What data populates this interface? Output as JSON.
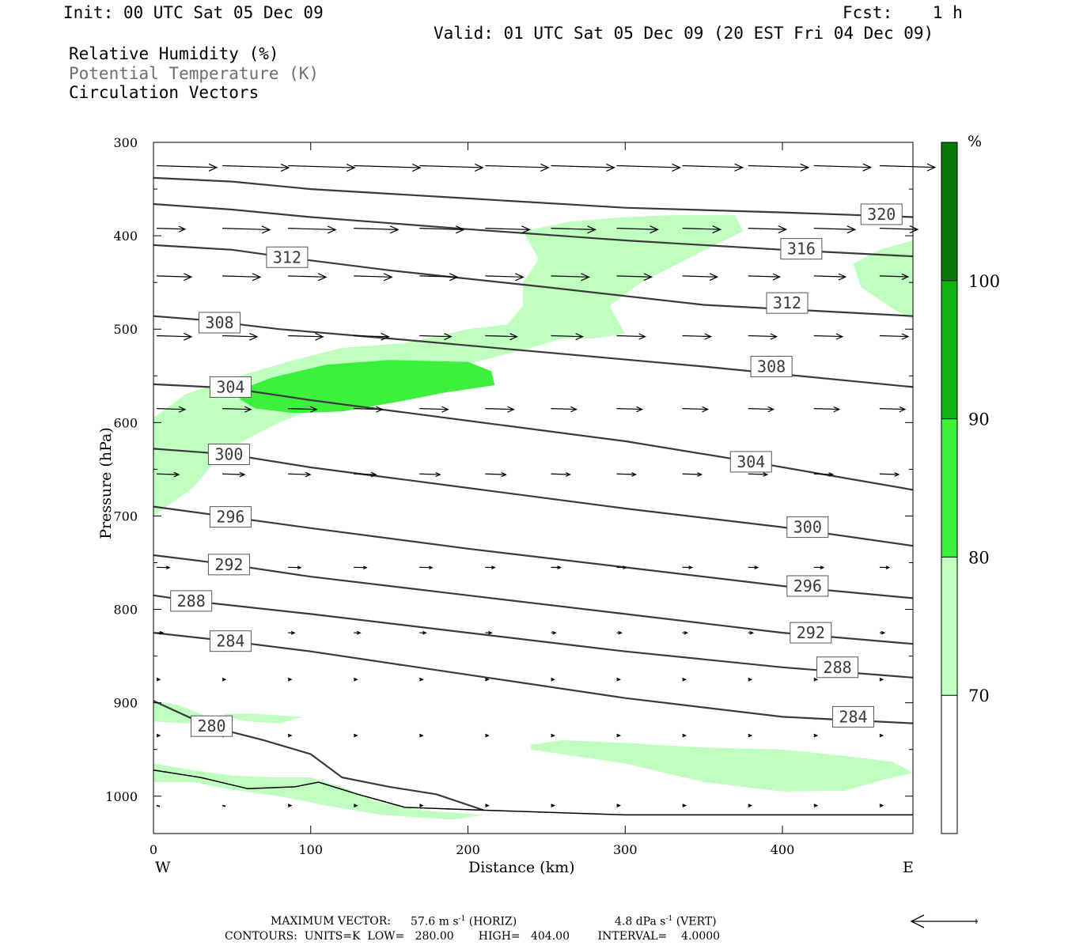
{
  "header": {
    "init": "Init: 00 UTC Sat 05 Dec 09",
    "fcst": "Fcst:    1 h",
    "valid": "Valid: 01 UTC Sat 05 Dec 09 (20 EST Fri 04 Dec 09)",
    "field1": "Relative Humidity (%)",
    "field2": "Potential Temperature (K)",
    "field3": "Circulation Vectors"
  },
  "chart_data": {
    "type": "cross-section",
    "xlabel": "Distance (km)",
    "ylabel": "Pressure (hPa)",
    "x_ticks": [
      0,
      100,
      200,
      300,
      400
    ],
    "y_ticks": [
      300,
      400,
      500,
      600,
      700,
      800,
      900,
      1000
    ],
    "xlim": [
      0,
      483
    ],
    "ylim": [
      300,
      1040
    ],
    "y_inverted": true,
    "left_end_label": "W",
    "right_end_label": "E",
    "colorbar": {
      "unit": "%",
      "levels": [
        70,
        80,
        90,
        100
      ],
      "colors": [
        "#ffffff",
        "#bfffbf",
        "#3cf03c",
        "#14b414",
        "#087808"
      ]
    },
    "rh_regions": [
      {
        "level": 70,
        "points": [
          [
            0,
            595
          ],
          [
            20,
            570
          ],
          [
            45,
            555
          ],
          [
            85,
            535
          ],
          [
            120,
            520
          ],
          [
            160,
            515
          ],
          [
            200,
            500
          ],
          [
            225,
            495
          ],
          [
            235,
            475
          ],
          [
            235,
            450
          ],
          [
            245,
            425
          ],
          [
            235,
            395
          ],
          [
            265,
            385
          ],
          [
            300,
            380
          ],
          [
            330,
            378
          ],
          [
            370,
            378
          ],
          [
            375,
            395
          ],
          [
            345,
            420
          ],
          [
            310,
            450
          ],
          [
            290,
            475
          ],
          [
            300,
            505
          ],
          [
            280,
            510
          ],
          [
            260,
            510
          ],
          [
            240,
            520
          ],
          [
            205,
            535
          ],
          [
            165,
            555
          ],
          [
            120,
            575
          ],
          [
            80,
            600
          ],
          [
            45,
            630
          ],
          [
            25,
            670
          ],
          [
            0,
            700
          ]
        ]
      },
      {
        "level": 80,
        "points": [
          [
            55,
            565
          ],
          [
            75,
            552
          ],
          [
            110,
            538
          ],
          [
            150,
            533
          ],
          [
            200,
            535
          ],
          [
            215,
            545
          ],
          [
            217,
            560
          ],
          [
            185,
            568
          ],
          [
            155,
            578
          ],
          [
            120,
            588
          ],
          [
            90,
            590
          ],
          [
            65,
            585
          ],
          [
            55,
            575
          ]
        ]
      },
      {
        "level": 70,
        "points": [
          [
            445,
            430
          ],
          [
            462,
            415
          ],
          [
            483,
            405
          ],
          [
            483,
            490
          ],
          [
            470,
            478
          ],
          [
            450,
            455
          ]
        ]
      },
      {
        "level": 70,
        "points": [
          [
            240,
            945
          ],
          [
            260,
            940
          ],
          [
            300,
            943
          ],
          [
            350,
            948
          ],
          [
            400,
            950
          ],
          [
            440,
            957
          ],
          [
            470,
            963
          ],
          [
            483,
            975
          ],
          [
            465,
            982
          ],
          [
            440,
            994
          ],
          [
            400,
            995
          ],
          [
            350,
            985
          ],
          [
            300,
            965
          ],
          [
            260,
            955
          ],
          [
            240,
            950
          ]
        ]
      },
      {
        "level": 70,
        "points": [
          [
            0,
            898
          ],
          [
            15,
            902
          ],
          [
            30,
            912
          ],
          [
            40,
            920
          ],
          [
            20,
            922
          ],
          [
            0,
            920
          ]
        ]
      },
      {
        "level": 70,
        "points": [
          [
            45,
            912
          ],
          [
            65,
            912
          ],
          [
            95,
            915
          ],
          [
            80,
            922
          ],
          [
            60,
            920
          ],
          [
            45,
            915
          ]
        ]
      },
      {
        "level": 70,
        "points": [
          [
            0,
            965
          ],
          [
            25,
            972
          ],
          [
            50,
            978
          ],
          [
            80,
            980
          ],
          [
            100,
            980
          ],
          [
            120,
            990
          ],
          [
            140,
            1005
          ],
          [
            170,
            1015
          ],
          [
            210,
            1020
          ],
          [
            190,
            1025
          ],
          [
            145,
            1020
          ],
          [
            110,
            1010
          ],
          [
            80,
            1000
          ],
          [
            50,
            993
          ],
          [
            25,
            985
          ],
          [
            0,
            985
          ]
        ]
      }
    ],
    "isentropes": [
      {
        "theta": 320,
        "points": [
          [
            0,
            338
          ],
          [
            50,
            342
          ],
          [
            100,
            350
          ],
          [
            200,
            360
          ],
          [
            300,
            370
          ],
          [
            400,
            375
          ],
          [
            483,
            380
          ]
        ],
        "label_at": [
          463,
          377
        ]
      },
      {
        "theta": 316,
        "points": [
          [
            0,
            366
          ],
          [
            50,
            372
          ],
          [
            100,
            380
          ],
          [
            200,
            393
          ],
          [
            300,
            405
          ],
          [
            400,
            415
          ],
          [
            483,
            422
          ]
        ],
        "label_at": [
          412,
          414
        ]
      },
      {
        "theta": 312,
        "points": [
          [
            0,
            410
          ],
          [
            50,
            415
          ],
          [
            84,
            423
          ],
          [
            150,
            437
          ],
          [
            250,
            455
          ],
          [
            350,
            474
          ],
          [
            483,
            486
          ]
        ],
        "label_at": [
          85,
          423
        ]
      },
      {
        "theta": 308,
        "points": [
          [
            0,
            486
          ],
          [
            30,
            490
          ],
          [
            80,
            500
          ],
          [
            150,
            510
          ],
          [
            250,
            525
          ],
          [
            350,
            540
          ],
          [
            483,
            562
          ]
        ],
        "label_at": [
          42,
          493
        ]
      },
      {
        "theta": 304,
        "points": [
          [
            0,
            559
          ],
          [
            48,
            563
          ],
          [
            100,
            576
          ],
          [
            200,
            598
          ],
          [
            300,
            620
          ],
          [
            380,
            642
          ],
          [
            483,
            672
          ]
        ],
        "label_at": [
          49,
          562
        ]
      },
      {
        "theta": 300,
        "points": [
          [
            0,
            628
          ],
          [
            48,
            634
          ],
          [
            100,
            648
          ],
          [
            200,
            670
          ],
          [
            300,
            692
          ],
          [
            400,
            712
          ],
          [
            483,
            732
          ]
        ],
        "label_at": [
          48,
          634
        ]
      },
      {
        "theta": 296,
        "points": [
          [
            0,
            690
          ],
          [
            48,
            701
          ],
          [
            100,
            713
          ],
          [
            200,
            735
          ],
          [
            300,
            755
          ],
          [
            400,
            775
          ],
          [
            483,
            788
          ]
        ],
        "label_at": [
          49,
          701
        ]
      },
      {
        "theta": 292,
        "points": [
          [
            0,
            742
          ],
          [
            48,
            752
          ],
          [
            100,
            765
          ],
          [
            200,
            785
          ],
          [
            300,
            805
          ],
          [
            400,
            825
          ],
          [
            483,
            837
          ]
        ],
        "label_at": [
          48,
          752
        ]
      },
      {
        "theta": 288,
        "points": [
          [
            0,
            785
          ],
          [
            24,
            791
          ],
          [
            100,
            805
          ],
          [
            200,
            825
          ],
          [
            300,
            845
          ],
          [
            400,
            862
          ],
          [
            483,
            873
          ]
        ],
        "label_at": [
          24,
          791
        ]
      },
      {
        "theta": 284,
        "points": [
          [
            0,
            825
          ],
          [
            48,
            834
          ],
          [
            100,
            845
          ],
          [
            200,
            870
          ],
          [
            300,
            895
          ],
          [
            400,
            915
          ],
          [
            483,
            922
          ]
        ],
        "label_at": [
          49,
          834
        ]
      },
      {
        "theta": 280,
        "points": [
          [
            0,
            898
          ],
          [
            35,
            925
          ],
          [
            70,
            940
          ],
          [
            100,
            955
          ],
          [
            120,
            980
          ],
          [
            150,
            990
          ],
          [
            180,
            998
          ],
          [
            210,
            1015
          ]
        ],
        "label_at": [
          37,
          925
        ]
      }
    ],
    "terrain": [
      [
        0,
        972
      ],
      [
        30,
        980
      ],
      [
        60,
        992
      ],
      [
        90,
        990
      ],
      [
        105,
        985
      ],
      [
        130,
        998
      ],
      [
        160,
        1012
      ],
      [
        210,
        1015
      ],
      [
        300,
        1020
      ],
      [
        483,
        1020
      ]
    ],
    "vectors": [
      {
        "r": 325,
        "u": 42,
        "w": 0
      },
      {
        "r": 325,
        "u": 42,
        "w": 0
      },
      {
        "r": 328,
        "u": 40,
        "w": 0
      },
      {
        "r": 330,
        "u": 40,
        "w": 0
      },
      {
        "r": 334,
        "u": 40,
        "w": 0
      },
      {
        "r": 335,
        "u": 40,
        "w": 0
      },
      {
        "r": 335,
        "u": 38,
        "w": 0
      },
      {
        "r": 335,
        "u": 38,
        "w": 0
      },
      {
        "r": 337,
        "u": 38,
        "w": 0
      },
      {
        "r": 337,
        "u": 36,
        "w": 0
      },
      {
        "r": 338,
        "u": 35,
        "w": 0
      },
      {
        "r": 338,
        "u": 34,
        "w": 0
      }
    ],
    "vector_rows": [
      {
        "p": 325,
        "u": [
          38,
          42,
          42,
          42,
          40,
          40,
          40,
          40,
          38,
          38,
          36,
          35
        ]
      },
      {
        "p": 392,
        "u": [
          18,
          30,
          30,
          28,
          28,
          28,
          28,
          26,
          24,
          24,
          26,
          24
        ]
      },
      {
        "p": 443,
        "u": [
          22,
          24,
          24,
          24,
          24,
          24,
          24,
          22,
          22,
          20,
          20,
          18
        ]
      },
      {
        "p": 507,
        "u": [
          22,
          22,
          22,
          22,
          20,
          20,
          20,
          18,
          18,
          18,
          18,
          18
        ]
      },
      {
        "p": 585,
        "u": [
          18,
          18,
          18,
          18,
          18,
          18,
          16,
          16,
          16,
          16,
          16,
          16
        ]
      },
      {
        "p": 655,
        "u": [
          14,
          14,
          14,
          14,
          13,
          13,
          12,
          12,
          12,
          12,
          12,
          12
        ]
      },
      {
        "p": 755,
        "u": [
          8,
          8,
          8,
          8,
          8,
          6,
          6,
          6,
          6,
          6,
          6,
          6
        ]
      },
      {
        "p": 825,
        "u": [
          4,
          4,
          4,
          4,
          4,
          4,
          3,
          3,
          3,
          3,
          3,
          3
        ]
      },
      {
        "p": 875,
        "u": [
          2,
          2,
          2,
          2,
          2,
          2,
          2,
          2,
          2,
          2,
          2,
          2
        ]
      },
      {
        "p": 935,
        "u": [
          2,
          2,
          2,
          2,
          2,
          2,
          2,
          2,
          2,
          2,
          2,
          2
        ]
      },
      {
        "p": 1010,
        "u": [
          0,
          0,
          2,
          2,
          2,
          2,
          2,
          2,
          2,
          2,
          2,
          2
        ]
      }
    ]
  },
  "footer": {
    "max_vector_label": "MAXIMUM VECTOR:",
    "max_vector_horiz": "57.6 m s",
    "horiz_tag": "(HORIZ)",
    "max_vector_vert": "4.8 dPa s",
    "vert_tag": "(VERT)",
    "exp": "-1",
    "contours": "CONTOURS:  UNITS=K  LOW=   280.00       HIGH=   404.00        INTERVAL=    4.0000"
  }
}
